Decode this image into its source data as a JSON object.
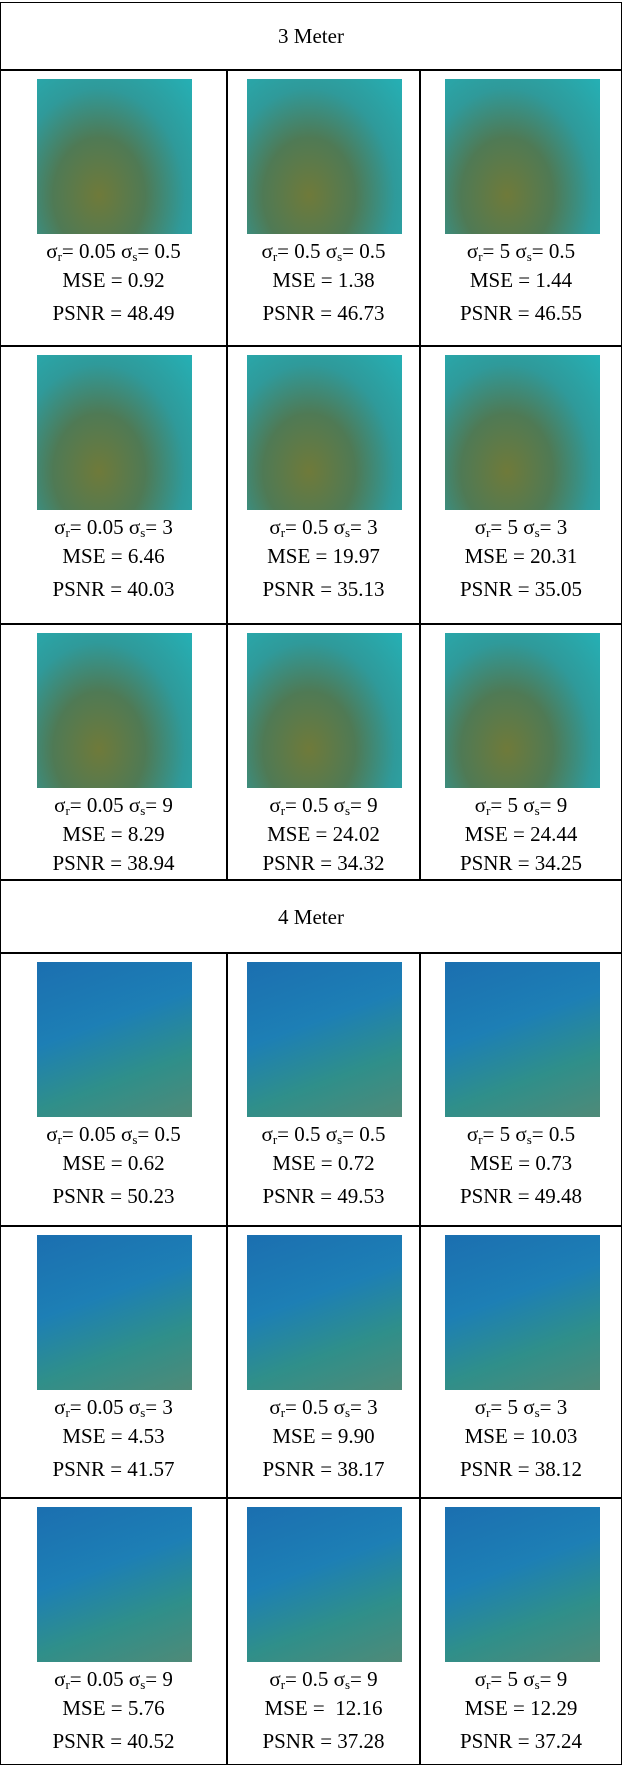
{
  "sections": [
    {
      "title": "3 Meter",
      "rows": [
        [
          {
            "sr": {
              "sym": "σ",
              "sub": "r",
              "val": "= 0.05"
            },
            "ss": {
              "sym": "σ",
              "sub": "s",
              "val": "= 0.5"
            },
            "mse": "MSE = 0.92",
            "psnr": "PSNR = 48.49"
          },
          {
            "sr": {
              "sym": "σ",
              "sub": "r",
              "val": "= 0.5"
            },
            "ss": {
              "sym": "σ",
              "sub": "s",
              "val": "= 0.5"
            },
            "mse": "MSE = 1.38",
            "psnr": "PSNR = 46.73"
          },
          {
            "sr": {
              "sym": "σ",
              "sub": "r",
              "val": "= 5"
            },
            "ss": {
              "sym": "σ",
              "sub": "s",
              "val": "= 0.5"
            },
            "mse": "MSE = 1.44",
            "psnr": "PSNR = 46.55"
          }
        ],
        [
          {
            "sr": {
              "sym": "σ",
              "sub": "r",
              "val": "= 0.05"
            },
            "ss": {
              "sym": "σ",
              "sub": "s",
              "val": "= 3"
            },
            "mse": "MSE = 6.46",
            "psnr": "PSNR = 40.03"
          },
          {
            "sr": {
              "sym": "σ",
              "sub": "r",
              "val": "= 0.5"
            },
            "ss": {
              "sym": "σ",
              "sub": "s",
              "val": "= 3"
            },
            "mse": "MSE = 19.97",
            "psnr": "PSNR = 35.13"
          },
          {
            "sr": {
              "sym": "σ",
              "sub": "r",
              "val": "= 5"
            },
            "ss": {
              "sym": "σ",
              "sub": "s",
              "val": "= 3"
            },
            "mse": "MSE = 20.31",
            "psnr": "PSNR = 35.05"
          }
        ],
        [
          {
            "sr": {
              "sym": "σ",
              "sub": "r",
              "val": "= 0.05"
            },
            "ss": {
              "sym": "σ",
              "sub": "s",
              "val": "= 9"
            },
            "mse": "MSE = 8.29",
            "psnr": "PSNR = 38.94"
          },
          {
            "sr": {
              "sym": "σ",
              "sub": "r",
              "val": "= 0.5"
            },
            "ss": {
              "sym": "σ",
              "sub": "s",
              "val": "= 9"
            },
            "mse": "MSE = 24.02",
            "psnr": "PSNR = 34.32"
          },
          {
            "sr": {
              "sym": "σ",
              "sub": "r",
              "val": "= 5"
            },
            "ss": {
              "sym": "σ",
              "sub": "s",
              "val": "= 9"
            },
            "mse": "MSE = 24.44",
            "psnr": "PSNR = 34.25"
          }
        ]
      ]
    },
    {
      "title": "4 Meter",
      "rows": [
        [
          {
            "sr": {
              "sym": "σ",
              "sub": "r",
              "val": "= 0.05"
            },
            "ss": {
              "sym": "σ",
              "sub": "s",
              "val": "= 0.5"
            },
            "mse": "MSE = 0.62",
            "psnr": "PSNR = 50.23"
          },
          {
            "sr": {
              "sym": "σ",
              "sub": "r",
              "val": "= 0.5"
            },
            "ss": {
              "sym": "σ",
              "sub": "s",
              "val": "= 0.5"
            },
            "mse": "MSE = 0.72",
            "psnr": "PSNR = 49.53"
          },
          {
            "sr": {
              "sym": "σ",
              "sub": "r",
              "val": "= 5"
            },
            "ss": {
              "sym": "σ",
              "sub": "s",
              "val": "= 0.5"
            },
            "mse": "MSE = 0.73",
            "psnr": "PSNR = 49.48"
          }
        ],
        [
          {
            "sr": {
              "sym": "σ",
              "sub": "r",
              "val": "= 0.05"
            },
            "ss": {
              "sym": "σ",
              "sub": "s",
              "val": "= 3"
            },
            "mse": "MSE = 4.53",
            "psnr": "PSNR = 41.57"
          },
          {
            "sr": {
              "sym": "σ",
              "sub": "r",
              "val": "= 0.5"
            },
            "ss": {
              "sym": "σ",
              "sub": "s",
              "val": "= 3"
            },
            "mse": "MSE = 9.90",
            "psnr": "PSNR = 38.17"
          },
          {
            "sr": {
              "sym": "σ",
              "sub": "r",
              "val": "= 5"
            },
            "ss": {
              "sym": "σ",
              "sub": "s",
              "val": "= 3"
            },
            "mse": "MSE = 10.03",
            "psnr": "PSNR = 38.12"
          }
        ],
        [
          {
            "sr": {
              "sym": "σ",
              "sub": "r",
              "val": "= 0.05"
            },
            "ss": {
              "sym": "σ",
              "sub": "s",
              "val": "= 9"
            },
            "mse": "MSE = 5.76",
            "psnr": "PSNR = 40.52"
          },
          {
            "sr": {
              "sym": "σ",
              "sub": "r",
              "val": "= 0.5"
            },
            "ss": {
              "sym": "σ",
              "sub": "s",
              "val": "= 9"
            },
            "mse": "MSE =  12.16",
            "psnr": "PSNR = 37.28"
          },
          {
            "sr": {
              "sym": "σ",
              "sub": "r",
              "val": "= 5"
            },
            "ss": {
              "sym": "σ",
              "sub": "s",
              "val": "= 9"
            },
            "mse": "MSE = 12.29",
            "psnr": "PSNR = 37.24"
          }
        ]
      ]
    }
  ]
}
